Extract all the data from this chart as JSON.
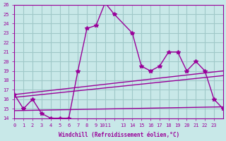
{
  "xlabel": "Windchill (Refroidissement éolien,°C)",
  "bg_color": "#c8e8e8",
  "grid_color": "#a0c8c8",
  "line_color": "#990099",
  "xlim": [
    0,
    23
  ],
  "ylim": [
    14,
    26
  ],
  "xtick_labels": [
    "0",
    "1",
    "2",
    "3",
    "4",
    "5",
    "6",
    "7",
    "8",
    "9",
    "1011",
    "",
    "13",
    "14",
    "15",
    "16",
    "17",
    "18",
    "19",
    "20",
    "21",
    "22",
    "23"
  ],
  "ytick_values": [
    14,
    15,
    16,
    17,
    18,
    19,
    20,
    21,
    22,
    23,
    24,
    25,
    26
  ],
  "line1_x": [
    0,
    1,
    2,
    3,
    4,
    5,
    6,
    7,
    8,
    9,
    10,
    11,
    13,
    14,
    15,
    16,
    17,
    18,
    19,
    20,
    21,
    22,
    23
  ],
  "line1_y": [
    16.5,
    15,
    16,
    14.5,
    14,
    14,
    14,
    19,
    23.5,
    23.8,
    26.2,
    25,
    23,
    19.5,
    19,
    19.5,
    21,
    21,
    19,
    20,
    19,
    16,
    15
  ],
  "line2_x": [
    0,
    23
  ],
  "line2_y": [
    16.5,
    19
  ],
  "line3_x": [
    0,
    23
  ],
  "line3_y": [
    16.2,
    18.5
  ],
  "line4_x": [
    0,
    23
  ],
  "line4_y": [
    14.8,
    15.2
  ]
}
